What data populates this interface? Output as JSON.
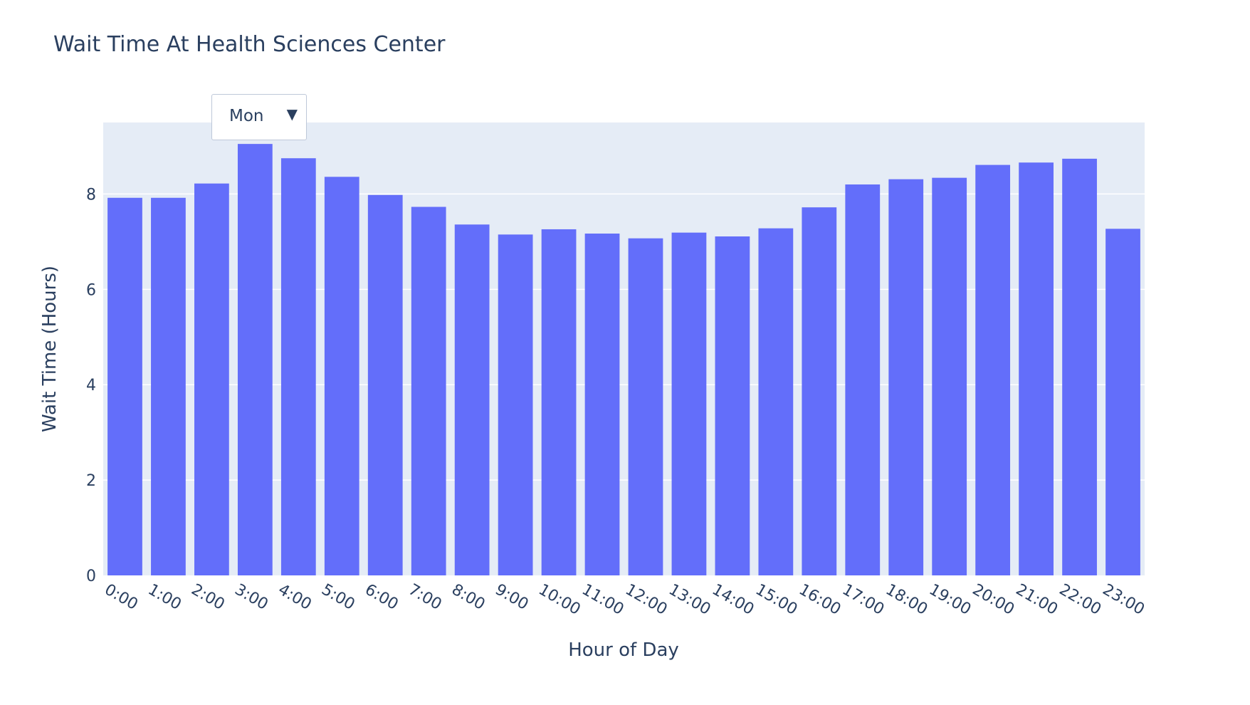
{
  "colors": {
    "bar": "#636efa",
    "plot_background": "#e5ecf6",
    "grid": "#ffffff",
    "text": "#2a3f5f"
  },
  "dropdown": {
    "selected": "Mon",
    "arrow_icon": "triangle-down-icon"
  },
  "chart_data": {
    "type": "bar",
    "title": "Wait Time At Health Sciences Center",
    "xlabel": "Hour of Day",
    "ylabel": "Wait Time (Hours)",
    "ylim": [
      0,
      9.5
    ],
    "yticks": [
      0,
      2,
      4,
      6,
      8
    ],
    "grid": true,
    "categories": [
      "0:00",
      "1:00",
      "2:00",
      "3:00",
      "4:00",
      "5:00",
      "6:00",
      "7:00",
      "8:00",
      "9:00",
      "10:00",
      "11:00",
      "12:00",
      "13:00",
      "14:00",
      "15:00",
      "16:00",
      "17:00",
      "18:00",
      "19:00",
      "20:00",
      "21:00",
      "22:00",
      "23:00"
    ],
    "values": [
      7.92,
      7.92,
      8.22,
      9.05,
      8.75,
      8.36,
      7.98,
      7.73,
      7.36,
      7.15,
      7.26,
      7.17,
      7.07,
      7.19,
      7.11,
      7.28,
      7.72,
      8.2,
      8.31,
      8.34,
      8.61,
      8.66,
      8.74,
      7.27
    ]
  }
}
